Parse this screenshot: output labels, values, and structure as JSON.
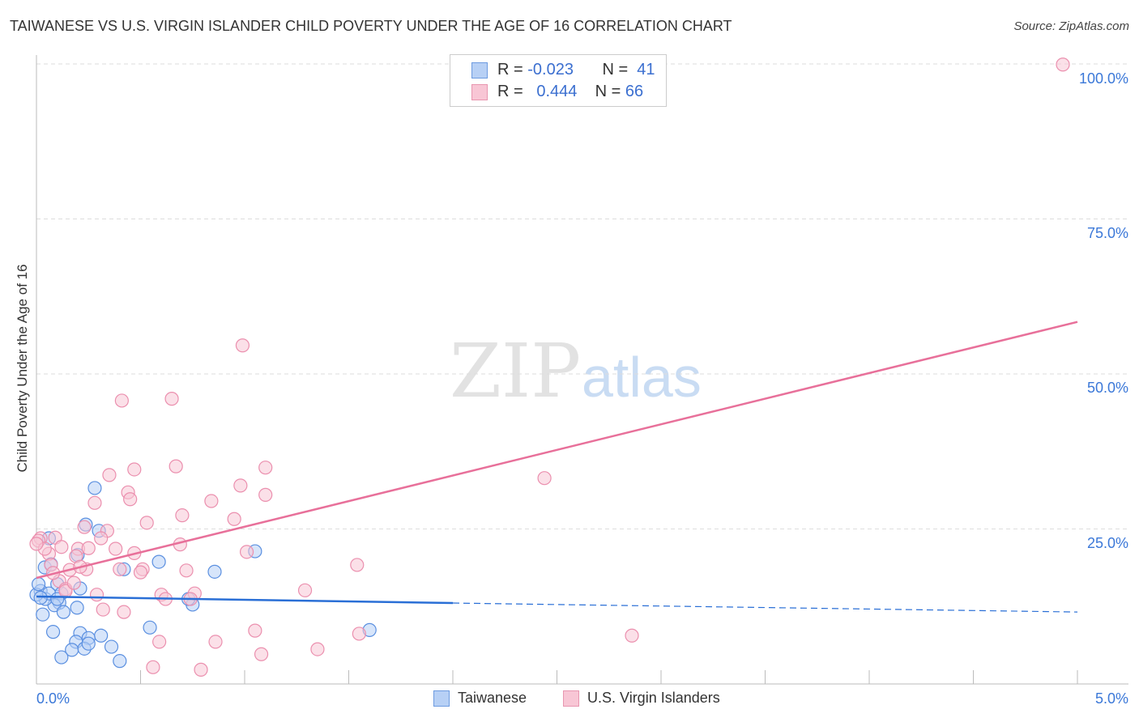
{
  "title": "TAIWANESE VS U.S. VIRGIN ISLANDER CHILD POVERTY UNDER THE AGE OF 16 CORRELATION CHART",
  "source": "Source: ZipAtlas.com",
  "colors": {
    "blue": "#3b78d8",
    "blue_fill": "#b7d0f5",
    "pink": "#e8709a",
    "pink_fill": "#f8c6d5"
  },
  "legend": {
    "rows": [
      {
        "r_label": "R =",
        "r": "-0.023",
        "n_label": "N =",
        "n": "41"
      },
      {
        "r_label": "R =",
        "r": "0.444",
        "n_label": "N =",
        "n": "66"
      }
    ]
  },
  "chart_data": {
    "type": "scatter",
    "title": "TAIWANESE VS U.S. VIRGIN ISLANDER CHILD POVERTY UNDER THE AGE OF 16 CORRELATION CHART",
    "xlabel": "",
    "ylabel": "Child Poverty Under the Age of 16",
    "xlim": [
      0,
      5
    ],
    "ylim": [
      0,
      100
    ],
    "x_tick_labels": [
      "0.0%",
      "5.0%"
    ],
    "y_tick_labels": [
      "100.0%",
      "75.0%",
      "50.0%",
      "25.0%"
    ],
    "y_ticks": [
      100,
      75,
      50,
      25
    ],
    "watermark": {
      "a": "ZIP",
      "b": "atlas"
    },
    "series": [
      {
        "name": "Taiwanese",
        "color": "blue",
        "trend": [
          [
            0,
            14.1
          ],
          [
            2.0,
            13.05
          ],
          [
            5,
            11.6
          ]
        ],
        "points": [
          [
            0.28,
            31.6
          ],
          [
            0.237,
            25.7
          ],
          [
            0.3,
            24.7
          ],
          [
            0.198,
            20.8
          ],
          [
            0.588,
            19.7
          ],
          [
            0.42,
            18.5
          ],
          [
            0.856,
            18.1
          ],
          [
            1.05,
            21.4
          ],
          [
            0.04,
            18.8
          ],
          [
            0.07,
            19.3
          ],
          [
            0.02,
            15.0
          ],
          [
            0.1,
            16.1
          ],
          [
            0.12,
            14.6
          ],
          [
            0.11,
            13.1
          ],
          [
            0.086,
            12.7
          ],
          [
            0.043,
            13.7
          ],
          [
            0.195,
            12.3
          ],
          [
            0.13,
            11.6
          ],
          [
            0.03,
            11.2
          ],
          [
            0.545,
            9.1
          ],
          [
            0.08,
            8.4
          ],
          [
            0.21,
            8.2
          ],
          [
            0.31,
            7.8
          ],
          [
            0.25,
            7.4
          ],
          [
            0.19,
            6.8
          ],
          [
            0.17,
            5.5
          ],
          [
            0.23,
            5.7
          ],
          [
            0.36,
            6.0
          ],
          [
            0.12,
            4.3
          ],
          [
            0.4,
            3.7
          ],
          [
            0.75,
            12.8
          ],
          [
            0.73,
            13.7
          ],
          [
            1.6,
            8.7
          ],
          [
            0.06,
            23.5
          ],
          [
            0.0,
            14.4
          ],
          [
            0.06,
            14.6
          ],
          [
            0.21,
            15.4
          ],
          [
            0.25,
            6.5
          ],
          [
            0.1,
            13.7
          ],
          [
            0.01,
            16.1
          ],
          [
            0.02,
            13.9
          ]
        ]
      },
      {
        "name": "U.S. Virgin Islanders",
        "color": "pink",
        "trend": [
          [
            0,
            17.1
          ],
          [
            5,
            58.4
          ]
        ],
        "points": [
          [
            4.93,
            99.9
          ],
          [
            0.99,
            54.6
          ],
          [
            0.41,
            45.7
          ],
          [
            0.65,
            46.0
          ],
          [
            0.67,
            35.1
          ],
          [
            0.47,
            34.6
          ],
          [
            0.35,
            33.7
          ],
          [
            1.1,
            34.9
          ],
          [
            0.98,
            32.0
          ],
          [
            1.1,
            30.5
          ],
          [
            0.44,
            30.9
          ],
          [
            0.45,
            29.8
          ],
          [
            0.28,
            29.2
          ],
          [
            0.84,
            29.5
          ],
          [
            0.7,
            27.2
          ],
          [
            2.44,
            33.2
          ],
          [
            0.95,
            26.6
          ],
          [
            0.53,
            26.0
          ],
          [
            0.23,
            25.3
          ],
          [
            0.34,
            24.7
          ],
          [
            0.31,
            23.5
          ],
          [
            0.09,
            23.6
          ],
          [
            0.02,
            23.5
          ],
          [
            0.69,
            22.5
          ],
          [
            0.12,
            22.1
          ],
          [
            0.2,
            21.8
          ],
          [
            0.25,
            21.9
          ],
          [
            0.38,
            21.8
          ],
          [
            0.47,
            21.1
          ],
          [
            1.01,
            21.3
          ],
          [
            0.19,
            20.6
          ],
          [
            0.06,
            21.0
          ],
          [
            0.07,
            19.2
          ],
          [
            1.54,
            19.2
          ],
          [
            0.24,
            18.5
          ],
          [
            0.4,
            18.5
          ],
          [
            0.51,
            18.5
          ],
          [
            0.5,
            18.0
          ],
          [
            0.72,
            18.3
          ],
          [
            0.16,
            18.4
          ],
          [
            0.11,
            16.6
          ],
          [
            0.14,
            15.3
          ],
          [
            0.29,
            14.4
          ],
          [
            1.29,
            15.1
          ],
          [
            0.6,
            14.4
          ],
          [
            0.62,
            13.7
          ],
          [
            0.76,
            14.6
          ],
          [
            0.74,
            13.7
          ],
          [
            0.32,
            12.0
          ],
          [
            0.42,
            11.6
          ],
          [
            1.05,
            8.6
          ],
          [
            1.55,
            8.1
          ],
          [
            2.86,
            7.8
          ],
          [
            0.59,
            6.8
          ],
          [
            0.86,
            6.8
          ],
          [
            1.08,
            4.8
          ],
          [
            1.35,
            5.6
          ],
          [
            0.56,
            2.7
          ],
          [
            0.79,
            2.3
          ],
          [
            0.01,
            23.1
          ],
          [
            0.04,
            21.8
          ],
          [
            0.0,
            22.6
          ],
          [
            0.14,
            15.0
          ],
          [
            0.21,
            18.9
          ],
          [
            0.08,
            17.9
          ],
          [
            0.18,
            16.3
          ]
        ]
      }
    ]
  }
}
